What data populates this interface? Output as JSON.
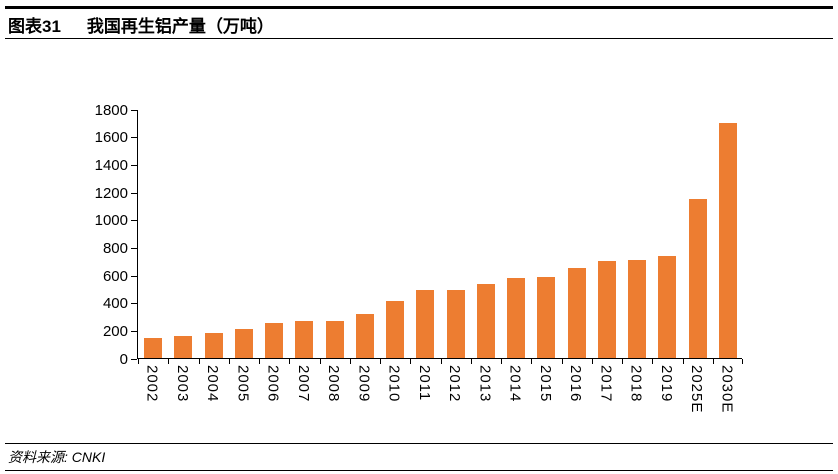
{
  "header": {
    "figure_label": "图表31",
    "title": "我国再生铝产量（万吨）"
  },
  "chart_data": {
    "type": "bar",
    "title": "我国再生铝产量（万吨）",
    "categories": [
      "2002",
      "2003",
      "2004",
      "2005",
      "2006",
      "2007",
      "2008",
      "2009",
      "2010",
      "2011",
      "2012",
      "2013",
      "2014",
      "2015",
      "2016",
      "2017",
      "2018",
      "2019",
      "2025E",
      "2030E"
    ],
    "values": [
      145,
      160,
      180,
      210,
      250,
      265,
      270,
      320,
      410,
      490,
      490,
      535,
      575,
      585,
      650,
      700,
      710,
      735,
      1150,
      1700
    ],
    "xlabel": "",
    "ylabel": "",
    "ylim": [
      0,
      1800
    ],
    "ytick_step": 200,
    "bar_color": "#ED7D31",
    "axis_color": "#000000",
    "grid": false,
    "legend_position": "none",
    "x_label_rotation": "vertical-top-to-bottom"
  },
  "footer": {
    "source": "资料来源: CNKI"
  }
}
